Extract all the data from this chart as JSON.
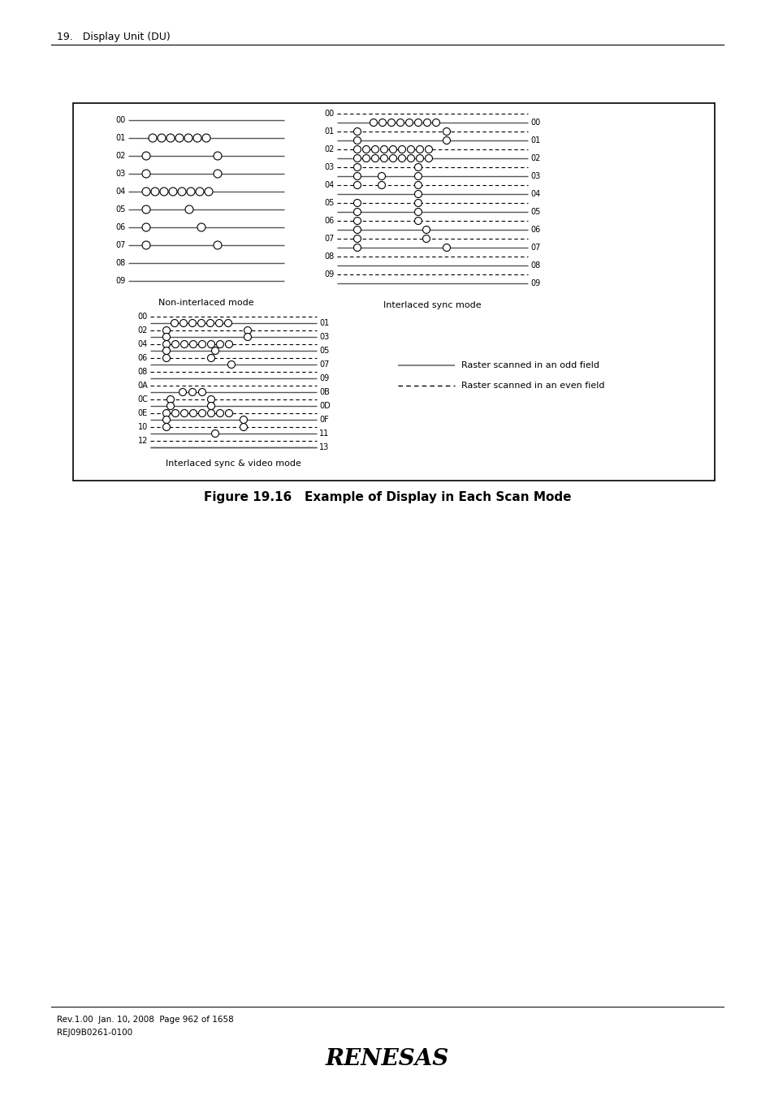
{
  "title": "Figure 19.16   Example of Display in Each Scan Mode",
  "header": "19.   Display Unit (DU)",
  "footer_line1": "Rev.1.00  Jan. 10, 2008  Page 962 of 1658",
  "footer_line2": "REJ09B0261-0100",
  "bg_color": "#ffffff"
}
